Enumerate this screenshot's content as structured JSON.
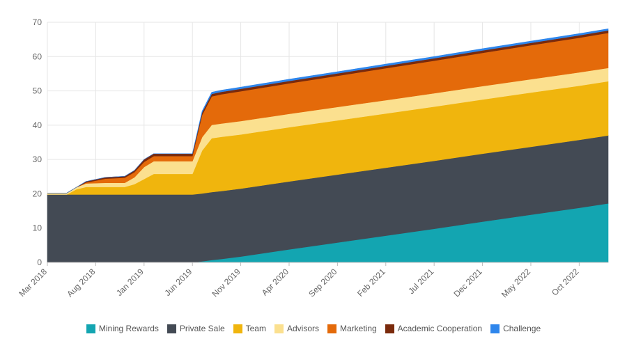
{
  "chart_data": {
    "type": "area",
    "stacked": true,
    "x": [
      "2018-03",
      "2018-05",
      "2018-06",
      "2018-07",
      "2018-09",
      "2018-11",
      "2018-12",
      "2019-01",
      "2019-02",
      "2019-03",
      "2019-05",
      "2019-06",
      "2019-07",
      "2019-08",
      "2019-09",
      "2019-11",
      "2020-04",
      "2020-09",
      "2021-02",
      "2021-07",
      "2021-12",
      "2022-05",
      "2022-10",
      "2023-01"
    ],
    "x_tick_labels": [
      "Mar 2018",
      "Aug 2018",
      "Jan 2019",
      "Jun 2019",
      "Nov 2019",
      "Apr 2020",
      "Sep 2020",
      "Feb 2021",
      "Jul 2021",
      "Dec 2021",
      "May 2022",
      "Oct 2022"
    ],
    "y_ticks": [
      0,
      10,
      20,
      30,
      40,
      50,
      60,
      70
    ],
    "ylim": [
      0,
      70
    ],
    "grid": true,
    "legend_position": "bottom",
    "series": [
      {
        "name": "Mining Rewards",
        "color": "#13a5b1",
        "values": [
          0,
          0,
          0,
          0,
          0,
          0,
          0,
          0,
          0,
          0,
          0,
          0,
          0.3,
          0.7,
          1.0,
          1.7,
          3.8,
          5.8,
          7.8,
          9.8,
          11.9,
          13.9,
          15.9,
          17.2
        ]
      },
      {
        "name": "Private Sale",
        "color": "#434a54",
        "values": [
          19.8,
          19.8,
          19.8,
          19.8,
          19.8,
          19.8,
          19.8,
          19.8,
          19.8,
          19.8,
          19.8,
          19.8,
          19.8,
          19.8,
          19.8,
          19.8,
          19.8,
          19.8,
          19.8,
          19.8,
          19.8,
          19.8,
          19.8,
          19.8
        ]
      },
      {
        "name": "Team",
        "color": "#f0b50d",
        "values": [
          0,
          0,
          1.5,
          2.2,
          2.2,
          2.2,
          3.0,
          4.5,
          6.0,
          6.0,
          6.0,
          6.0,
          12.5,
          15.7,
          15.8,
          15.8,
          15.8,
          15.8,
          15.8,
          15.8,
          15.8,
          15.8,
          15.8,
          15.8
        ]
      },
      {
        "name": "Advisors",
        "color": "#fbe08f",
        "values": [
          0.4,
          0.4,
          0.6,
          1.0,
          1.2,
          1.2,
          2.0,
          3.5,
          3.7,
          3.7,
          3.7,
          3.7,
          3.9,
          3.9,
          3.9,
          3.9,
          3.9,
          3.9,
          3.9,
          3.9,
          3.9,
          3.9,
          3.9,
          3.9
        ]
      },
      {
        "name": "Marketing",
        "color": "#e46a0a",
        "values": [
          0,
          0,
          0,
          0.3,
          1.2,
          1.5,
          1.5,
          1.5,
          1.5,
          1.5,
          1.5,
          1.5,
          6.5,
          8.3,
          8.5,
          8.7,
          8.9,
          9.1,
          9.3,
          9.5,
          9.7,
          9.9,
          10.1,
          10.2
        ]
      },
      {
        "name": "Academic Cooperation",
        "color": "#7a2a0c",
        "values": [
          0,
          0,
          0,
          0.3,
          0.4,
          0.4,
          0.5,
          0.7,
          0.7,
          0.7,
          0.7,
          0.7,
          0.7,
          0.7,
          0.7,
          0.7,
          0.7,
          0.7,
          0.7,
          0.7,
          0.7,
          0.7,
          0.7,
          0.7
        ]
      },
      {
        "name": "Challenge",
        "color": "#2e86ec",
        "values": [
          0,
          0,
          0,
          0,
          0,
          0,
          0,
          0,
          0,
          0,
          0,
          0,
          0.4,
          0.5,
          0.5,
          0.5,
          0.5,
          0.5,
          0.5,
          0.5,
          0.5,
          0.5,
          0.5,
          0.5
        ]
      }
    ]
  }
}
